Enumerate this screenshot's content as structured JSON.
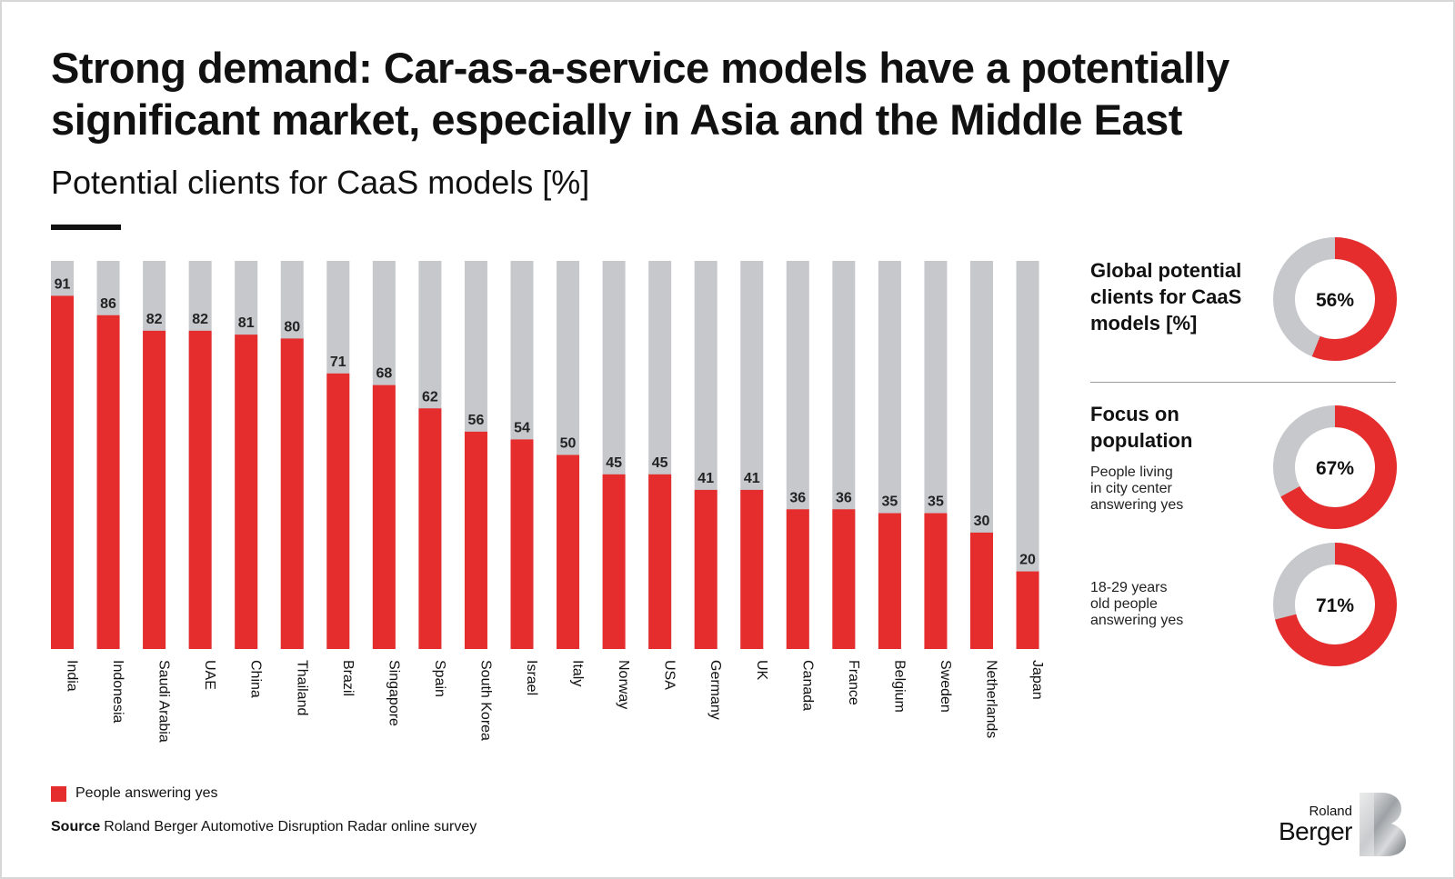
{
  "header": {
    "title": "Strong demand: Car-as-a-service models have a potentially significant market, especially in Asia and the Middle East",
    "subtitle": "Potential clients for CaaS models [%]"
  },
  "chart_data": [
    {
      "type": "bar",
      "title": "Potential clients for CaaS models [%]",
      "categories": [
        "India",
        "Indonesia",
        "Saudi Arabia",
        "UAE",
        "China",
        "Thailand",
        "Brazil",
        "Singapore",
        "Spain",
        "South Korea",
        "Israel",
        "Italy",
        "Norway",
        "USA",
        "Germany",
        "UK",
        "Canada",
        "France",
        "Belgium",
        "Sweden",
        "Netherlands",
        "Japan"
      ],
      "series": [
        {
          "name": "People answering yes",
          "values": [
            91,
            86,
            82,
            82,
            81,
            80,
            71,
            68,
            62,
            56,
            54,
            50,
            45,
            45,
            41,
            41,
            36,
            36,
            35,
            35,
            30,
            20
          ],
          "color": "#e52d2d"
        }
      ],
      "background_color": "#c6c8cc",
      "ylim": [
        0,
        100
      ],
      "legend": "bottom-left",
      "grid": false
    },
    {
      "type": "pie",
      "title": "Global potential clients for CaaS models [%]",
      "values": [
        56,
        44
      ],
      "label": "56%",
      "colors": [
        "#e52d2d",
        "#c6c8cc"
      ]
    },
    {
      "type": "pie",
      "title": "Focus on population",
      "note": "People living in city center answering yes",
      "values": [
        67,
        33
      ],
      "label": "67%",
      "colors": [
        "#e52d2d",
        "#c6c8cc"
      ]
    },
    {
      "type": "pie",
      "note": "18-29 years old people answering yes",
      "values": [
        71,
        29
      ],
      "label": "71%",
      "colors": [
        "#e52d2d",
        "#c6c8cc"
      ]
    }
  ],
  "panel": {
    "global_heading": "Global potential\nclients for CaaS\nmodels [%]",
    "focus_heading": "Focus on\npopulation",
    "city_note": "People living\nin city center\nanswering yes",
    "age_note": "18-29 years\nold people\nanswering yes"
  },
  "legend": {
    "label": "People answering yes"
  },
  "source": {
    "label": "Source",
    "text": "Roland Berger Automotive Disruption Radar online survey"
  },
  "logo": {
    "word_small": "Roland",
    "word_big": "Berger"
  }
}
